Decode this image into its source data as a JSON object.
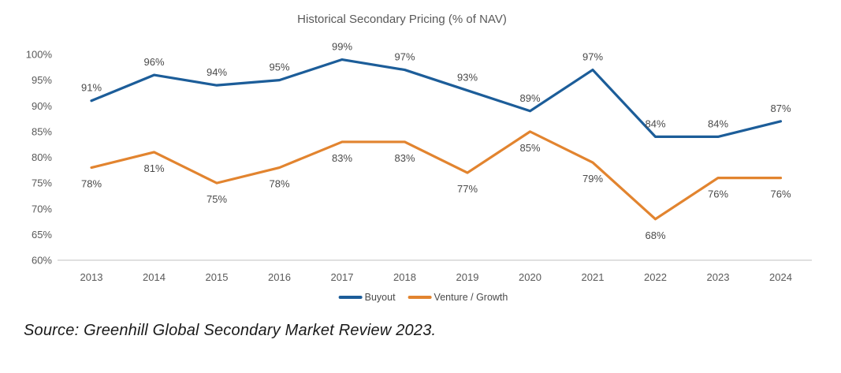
{
  "title": "Historical Secondary Pricing (% of NAV)",
  "source_note": "Source: Greenhill Global Secondary Market Review 2023.",
  "colors": {
    "buyout": "#1C5D99",
    "venture": "#E2842F",
    "axis_text": "#595959",
    "data_label": "#4A4A4A",
    "axis_line": "#D6D6D6",
    "title_text": "#595959",
    "source_text": "#1A1A1A"
  },
  "chart_data": {
    "type": "line",
    "title": "Historical Secondary Pricing (% of NAV)",
    "categories": [
      "2013",
      "2014",
      "2015",
      "2016",
      "2017",
      "2018",
      "2019",
      "2020",
      "2021",
      "2022",
      "2023",
      "2024"
    ],
    "series": [
      {
        "name": "Buyout",
        "color": "#1C5D99",
        "values": [
          91,
          96,
          94,
          95,
          99,
          97,
          93,
          89,
          97,
          84,
          84,
          87
        ],
        "labels": [
          "91%",
          "96%",
          "94%",
          "95%",
          "99%",
          "97%",
          "93%",
          "89%",
          "97%",
          "84%",
          "84%",
          "87%"
        ],
        "label_position": "above"
      },
      {
        "name": "Venture / Growth",
        "color": "#E2842F",
        "values": [
          78,
          81,
          75,
          78,
          83,
          83,
          77,
          85,
          79,
          68,
          76,
          76
        ],
        "labels": [
          "78%",
          "81%",
          "75%",
          "78%",
          "83%",
          "83%",
          "77%",
          "85%",
          "79%",
          "68%",
          "76%",
          "76%"
        ],
        "label_position": "below"
      }
    ],
    "y_ticks": [
      "100%",
      "95%",
      "90%",
      "85%",
      "80%",
      "75%",
      "70%",
      "65%",
      "60%"
    ],
    "ylim": [
      60,
      100
    ],
    "ytick_step": 5,
    "grid": false,
    "legend_position": "bottom"
  }
}
